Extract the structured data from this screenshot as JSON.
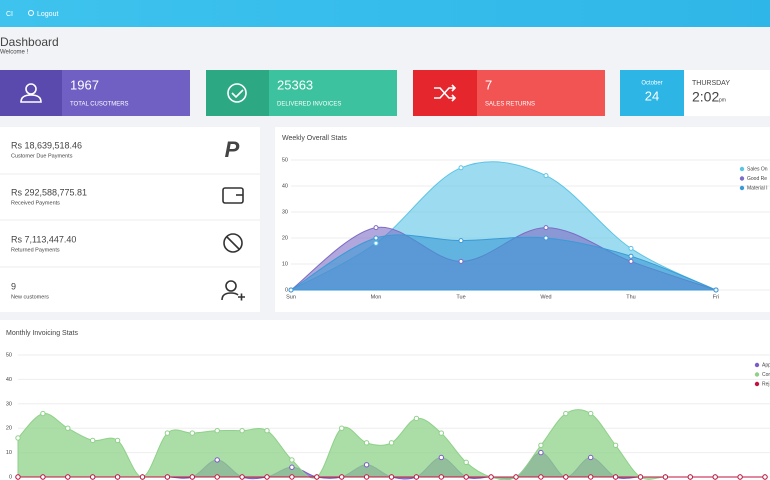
{
  "topbar": {
    "user": "CI",
    "logout": "Logout"
  },
  "header": {
    "title": "Dashboard",
    "subtitle": "Welcome !"
  },
  "cards": [
    {
      "value": "1967",
      "label": "TOTAL CUSOTMERS"
    },
    {
      "value": "25363",
      "label": "DELIVERED INVOICES"
    },
    {
      "value": "7",
      "label": "SALES RETURNS"
    }
  ],
  "date_card": {
    "month": "October",
    "day": "24",
    "weekday": "THURSDAY",
    "time": "2:02",
    "ampm": "pm"
  },
  "payments": [
    {
      "value": "Rs 18,639,518.46",
      "label": "Customer Due Payments"
    },
    {
      "value": "Rs 292,588,775.81",
      "label": "Received Payments"
    },
    {
      "value": "Rs 7,113,447.40",
      "label": "Returned Payments"
    },
    {
      "value": "9",
      "label": "New customers"
    }
  ],
  "weekly_chart": {
    "type": "area",
    "title": "Weekly Overall Stats",
    "categories": [
      "Sun",
      "Mon",
      "Tue",
      "Wed",
      "Thu",
      "Fri"
    ],
    "series": [
      {
        "name": "Sales On",
        "color": "#5bc4e6",
        "values": [
          0,
          18,
          47,
          44,
          16,
          0
        ]
      },
      {
        "name": "Good Re",
        "color": "#7d6cc4",
        "values": [
          0,
          24,
          11,
          24,
          11,
          0
        ]
      },
      {
        "name": "Material I",
        "color": "#3a9ad6",
        "values": [
          0,
          20,
          19,
          20,
          13,
          0
        ]
      }
    ],
    "ylim": [
      0,
      50
    ],
    "yticks": [
      0,
      10,
      20,
      30,
      40,
      50
    ],
    "grid": true,
    "legend": "right"
  },
  "monthly_chart": {
    "type": "area",
    "title": "Monthly Invoicing Stats",
    "series": [
      {
        "name": "App",
        "color": "#7b5cc6",
        "values": [
          0,
          0,
          0,
          0,
          0,
          0,
          0,
          0,
          7,
          0,
          0,
          4,
          0,
          0,
          5,
          0,
          0,
          8,
          0,
          0,
          0,
          10,
          0,
          8,
          0,
          0,
          0,
          0,
          0,
          0,
          0
        ]
      },
      {
        "name": "Con",
        "color": "#8fd18a",
        "values": [
          16,
          26,
          20,
          15,
          15,
          0,
          18,
          18,
          19,
          19,
          19,
          7,
          0,
          20,
          14,
          14,
          24,
          18,
          6,
          0,
          0,
          13,
          26,
          26,
          13,
          0,
          0,
          0,
          0,
          0,
          0
        ]
      },
      {
        "name": "Rej",
        "color": "#c2123d",
        "values": [
          0,
          0,
          0,
          0,
          0,
          0,
          0,
          0,
          0,
          0,
          0,
          0,
          0,
          0,
          0,
          0,
          0,
          0,
          0,
          0,
          0,
          0,
          0,
          0,
          0,
          0,
          0,
          0,
          0,
          0,
          0
        ]
      }
    ],
    "ylim": [
      0,
      50
    ],
    "yticks": [
      0,
      10,
      20,
      30,
      40,
      50
    ],
    "grid": true,
    "legend": "right"
  }
}
